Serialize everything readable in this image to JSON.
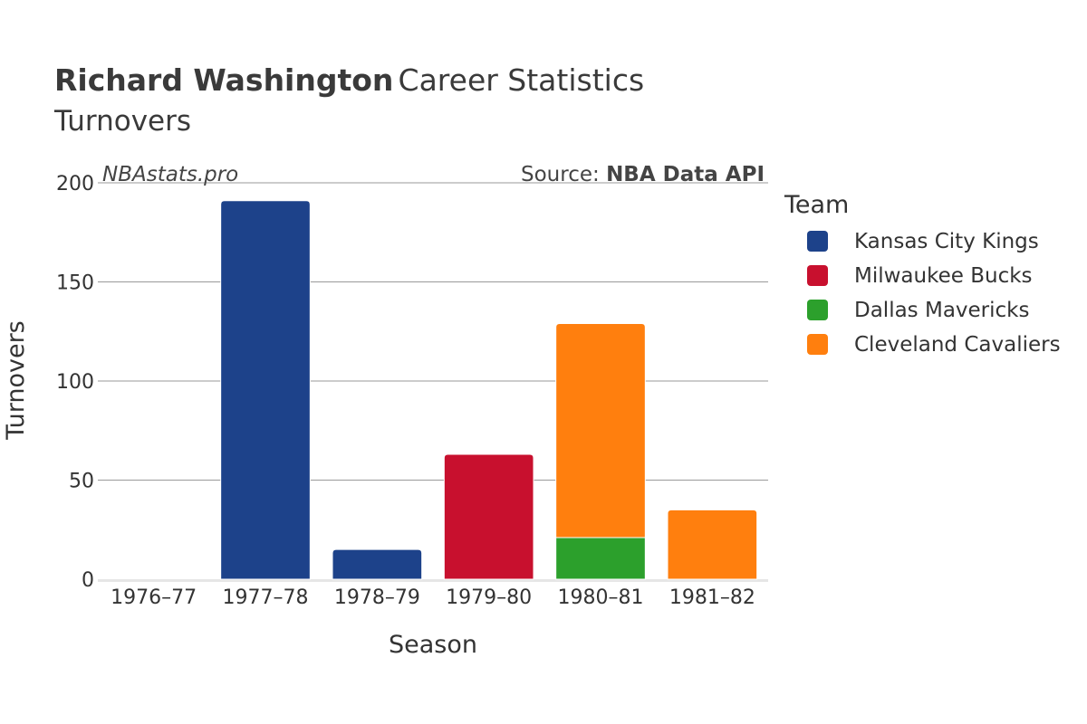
{
  "header": {
    "player_name": "Richard Washington",
    "title_suffix": "Career Statistics",
    "subtitle": "Turnovers"
  },
  "watermark": "NBAstats.pro",
  "source": {
    "prefix": "Source: ",
    "name": "NBA Data API"
  },
  "legend": {
    "title": "Team"
  },
  "colors": {
    "Kansas City Kings": "#1d428a",
    "Milwaukee Bucks": "#c8102e",
    "Dallas Mavericks": "#2ca02c",
    "Cleveland Cavaliers": "#ff7f0e"
  },
  "chart_data": {
    "type": "bar",
    "stacked": true,
    "categories": [
      "1976–77",
      "1977–78",
      "1978–79",
      "1979–80",
      "1980–81",
      "1981–82"
    ],
    "series": [
      {
        "name": "Kansas City Kings",
        "values": [
          0,
          191,
          15,
          0,
          0,
          0
        ]
      },
      {
        "name": "Milwaukee Bucks",
        "values": [
          0,
          0,
          0,
          63,
          0,
          0
        ]
      },
      {
        "name": "Dallas Mavericks",
        "values": [
          0,
          0,
          0,
          0,
          21,
          0
        ]
      },
      {
        "name": "Cleveland Cavaliers",
        "values": [
          0,
          0,
          0,
          0,
          108,
          35
        ]
      }
    ],
    "xlabel": "Season",
    "ylabel": "Turnovers",
    "ylim": [
      0,
      200
    ],
    "yticks": [
      0,
      50,
      100,
      150,
      200
    ],
    "grid": true,
    "legend_position": "right"
  }
}
